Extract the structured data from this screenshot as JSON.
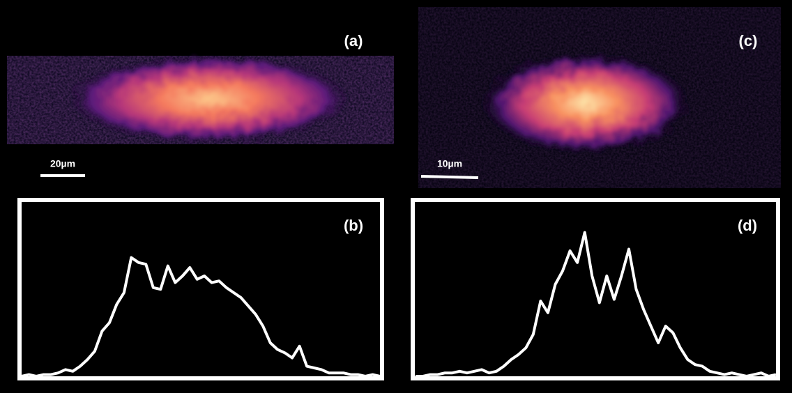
{
  "images": [
    {
      "label": "(a)",
      "scale_bar": "20µm"
    },
    {
      "label": "(c)",
      "scale_bar": "10µm"
    }
  ],
  "chart_data": [
    {
      "type": "line",
      "label": "(b)",
      "color": "#ffffff",
      "ylim": [
        0,
        1
      ],
      "values": [
        0.0,
        0.01,
        0.0,
        0.01,
        0.01,
        0.02,
        0.04,
        0.03,
        0.06,
        0.1,
        0.15,
        0.27,
        0.32,
        0.43,
        0.5,
        0.71,
        0.68,
        0.67,
        0.53,
        0.52,
        0.66,
        0.56,
        0.6,
        0.65,
        0.58,
        0.6,
        0.56,
        0.57,
        0.53,
        0.5,
        0.47,
        0.42,
        0.37,
        0.3,
        0.2,
        0.16,
        0.14,
        0.11,
        0.18,
        0.06,
        0.05,
        0.04,
        0.02,
        0.02,
        0.02,
        0.01,
        0.01,
        0.0,
        0.01,
        0.0
      ]
    },
    {
      "type": "line",
      "label": "(d)",
      "color": "#ffffff",
      "ylim": [
        0,
        1
      ],
      "values": [
        0.0,
        0.0,
        0.01,
        0.01,
        0.02,
        0.02,
        0.03,
        0.02,
        0.03,
        0.04,
        0.02,
        0.03,
        0.06,
        0.1,
        0.13,
        0.17,
        0.25,
        0.45,
        0.38,
        0.55,
        0.63,
        0.75,
        0.68,
        0.86,
        0.6,
        0.44,
        0.6,
        0.46,
        0.6,
        0.76,
        0.52,
        0.4,
        0.3,
        0.2,
        0.3,
        0.26,
        0.17,
        0.1,
        0.07,
        0.06,
        0.03,
        0.02,
        0.01,
        0.02,
        0.01,
        0.0,
        0.01,
        0.02,
        0.0,
        0.01
      ]
    }
  ]
}
